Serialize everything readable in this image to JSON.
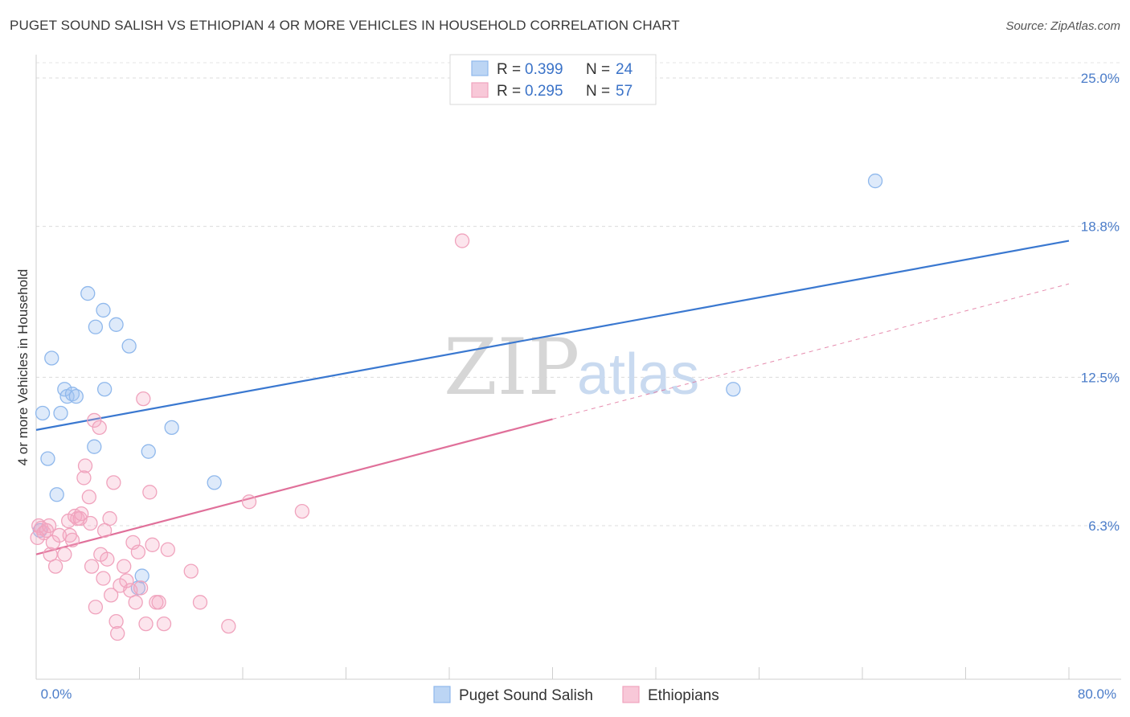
{
  "title": "PUGET SOUND SALISH VS ETHIOPIAN 4 OR MORE VEHICLES IN HOUSEHOLD CORRELATION CHART",
  "source": "Source: ZipAtlas.com",
  "watermark": {
    "zip": "ZIP",
    "atlas": "atlas"
  },
  "chart_data": {
    "type": "scatter",
    "title": "PUGET SOUND SALISH VS ETHIOPIAN 4 OR MORE VEHICLES IN HOUSEHOLD CORRELATION CHART",
    "xlabel": "",
    "ylabel": "4 or more Vehicles in Household",
    "xlim": [
      0,
      80
    ],
    "ylim": [
      0,
      26
    ],
    "x_tick_labels": [
      {
        "value": 0,
        "label": "0.0%"
      },
      {
        "value": 80,
        "label": "80.0%"
      }
    ],
    "y_tick_labels": [
      {
        "value": 6.3,
        "label": "6.3%"
      },
      {
        "value": 12.5,
        "label": "12.5%"
      },
      {
        "value": 18.8,
        "label": "18.8%"
      },
      {
        "value": 25.0,
        "label": "25.0%"
      }
    ],
    "x_minor_ticks": [
      0,
      8,
      16,
      24,
      32,
      40,
      48,
      56,
      64,
      72,
      80
    ],
    "grid": true,
    "legend": [
      {
        "name": "Puget Sound Salish",
        "r_label": "R = ",
        "r": "0.399",
        "n_label": "N = ",
        "n": "24",
        "color": "#8fb8ec",
        "fill": "#bcd5f4"
      },
      {
        "name": "Ethiopians",
        "r_label": "R = ",
        "r": "0.295",
        "n_label": "N = ",
        "n": "57",
        "color": "#f0a3bd",
        "fill": "#f8c8d8"
      }
    ],
    "series": [
      {
        "name": "Puget Sound Salish",
        "color": "#8fb8ec",
        "fill": "rgba(160,196,240,0.35)",
        "trend": {
          "x0": 0,
          "y0": 10.3,
          "x1": 80,
          "y1": 18.2,
          "color": "#3a78d0",
          "dashed_from": null
        },
        "points": [
          [
            0.5,
            11.0
          ],
          [
            0.9,
            9.1
          ],
          [
            1.6,
            7.6
          ],
          [
            1.9,
            11.0
          ],
          [
            2.2,
            12.0
          ],
          [
            2.4,
            11.7
          ],
          [
            2.8,
            11.8
          ],
          [
            3.1,
            11.7
          ],
          [
            4.5,
            9.6
          ],
          [
            4.6,
            14.6
          ],
          [
            5.2,
            15.3
          ],
          [
            5.3,
            12.0
          ],
          [
            6.2,
            14.7
          ],
          [
            7.2,
            13.8
          ],
          [
            7.9,
            3.7
          ],
          [
            8.7,
            9.4
          ],
          [
            10.5,
            10.4
          ],
          [
            13.8,
            8.1
          ],
          [
            1.2,
            13.3
          ],
          [
            4.0,
            16.0
          ],
          [
            0.3,
            6.1
          ],
          [
            8.2,
            4.2
          ],
          [
            54.0,
            12.0
          ],
          [
            65.0,
            20.7
          ]
        ]
      },
      {
        "name": "Ethiopians",
        "color": "#f0a3bd",
        "fill": "rgba(244,170,196,0.3)",
        "trend": {
          "x0": 0,
          "y0": 5.1,
          "x1": 80,
          "y1": 16.4,
          "color": "#e0709a",
          "dashed_from": 40
        },
        "points": [
          [
            0.2,
            6.3
          ],
          [
            0.4,
            6.2
          ],
          [
            0.6,
            6.0
          ],
          [
            0.8,
            6.1
          ],
          [
            1.0,
            6.3
          ],
          [
            1.1,
            5.1
          ],
          [
            1.3,
            5.6
          ],
          [
            1.5,
            4.6
          ],
          [
            1.8,
            5.9
          ],
          [
            2.2,
            5.1
          ],
          [
            2.5,
            6.5
          ],
          [
            2.6,
            5.9
          ],
          [
            2.8,
            5.7
          ],
          [
            3.0,
            6.7
          ],
          [
            3.2,
            6.6
          ],
          [
            3.4,
            6.6
          ],
          [
            3.5,
            6.8
          ],
          [
            3.7,
            8.3
          ],
          [
            3.8,
            8.8
          ],
          [
            4.1,
            7.5
          ],
          [
            4.2,
            6.4
          ],
          [
            4.3,
            4.6
          ],
          [
            4.5,
            10.7
          ],
          [
            4.6,
            2.9
          ],
          [
            4.9,
            10.4
          ],
          [
            5.0,
            5.1
          ],
          [
            5.2,
            4.1
          ],
          [
            5.3,
            6.1
          ],
          [
            5.5,
            4.9
          ],
          [
            5.7,
            6.6
          ],
          [
            5.8,
            3.4
          ],
          [
            6.0,
            8.1
          ],
          [
            6.2,
            2.3
          ],
          [
            6.3,
            1.8
          ],
          [
            6.5,
            3.8
          ],
          [
            6.8,
            4.6
          ],
          [
            7.0,
            4.0
          ],
          [
            7.3,
            3.6
          ],
          [
            7.5,
            5.6
          ],
          [
            7.7,
            3.1
          ],
          [
            7.9,
            5.2
          ],
          [
            8.1,
            3.7
          ],
          [
            8.3,
            11.6
          ],
          [
            8.5,
            2.2
          ],
          [
            8.8,
            7.7
          ],
          [
            9.0,
            5.5
          ],
          [
            9.3,
            3.1
          ],
          [
            9.5,
            3.1
          ],
          [
            9.9,
            2.2
          ],
          [
            10.2,
            5.3
          ],
          [
            12.0,
            4.4
          ],
          [
            12.7,
            3.1
          ],
          [
            14.9,
            2.1
          ],
          [
            16.5,
            7.3
          ],
          [
            20.6,
            6.9
          ],
          [
            33.0,
            18.2
          ],
          [
            0.1,
            5.8
          ]
        ]
      }
    ]
  }
}
